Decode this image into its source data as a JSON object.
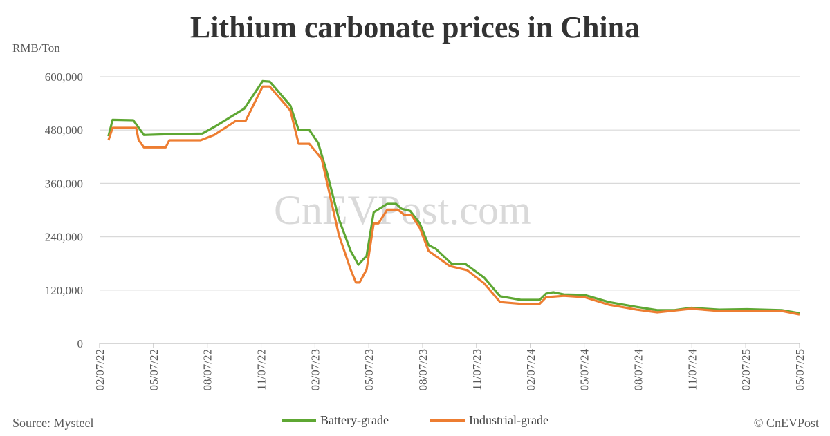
{
  "chart_data": {
    "type": "line",
    "title": "Lithium carbonate prices in China",
    "ylabel": "RMB/Ton",
    "ylim": [
      0,
      600000
    ],
    "yticks": [
      "0",
      "120,000",
      "240,000",
      "360,000",
      "480,000",
      "600,000"
    ],
    "ytick_values": [
      0,
      120000,
      240000,
      360000,
      480000,
      600000
    ],
    "xlim": [
      "2022-02-07",
      "2025-05-07"
    ],
    "xticks": [
      "02/07/22",
      "05/07/22",
      "08/07/22",
      "11/07/22",
      "02/07/23",
      "05/07/23",
      "08/07/23",
      "11/07/23",
      "02/07/24",
      "05/07/24",
      "08/07/24",
      "11/07/24",
      "02/07/25",
      "05/07/25"
    ],
    "grid": "horizontal",
    "legend": "bottom",
    "series": [
      {
        "name": "Battery-grade",
        "color": "#5ea733",
        "x": [
          "2022-02-22",
          "2022-03-01",
          "2022-04-05",
          "2022-04-23",
          "2022-06-11",
          "2022-07-31",
          "2022-08-24",
          "2022-09-25",
          "2022-10-10",
          "2022-11-10",
          "2022-11-22",
          "2022-12-07",
          "2022-12-27",
          "2023-01-10",
          "2023-01-28",
          "2023-02-12",
          "2023-02-27",
          "2023-03-19",
          "2023-04-08",
          "2023-04-21",
          "2023-05-05",
          "2023-05-17",
          "2023-06-09",
          "2023-06-24",
          "2023-07-03",
          "2023-07-18",
          "2023-08-03",
          "2023-08-18",
          "2023-08-30",
          "2023-09-26",
          "2023-10-19",
          "2023-11-20",
          "2023-12-17",
          "2024-01-21",
          "2024-02-22",
          "2024-03-04",
          "2024-03-16",
          "2024-04-03",
          "2024-05-08",
          "2024-06-18",
          "2024-08-04",
          "2024-09-08",
          "2024-10-07",
          "2024-11-05",
          "2024-12-22",
          "2025-02-07",
          "2025-04-07",
          "2025-05-07"
        ],
        "values": [
          466000,
          503000,
          502000,
          469000,
          471000,
          472000,
          490000,
          516000,
          528000,
          590000,
          589000,
          566000,
          535000,
          480000,
          480000,
          451000,
          384000,
          280000,
          208000,
          177000,
          197000,
          295000,
          314000,
          314000,
          303000,
          298000,
          270000,
          221000,
          213000,
          179000,
          179000,
          148000,
          106000,
          98000,
          98000,
          112000,
          115000,
          110000,
          109000,
          93000,
          82000,
          75000,
          75000,
          80000,
          76000,
          77000,
          75000,
          68000
        ]
      },
      {
        "name": "Industrial-grade",
        "color": "#ed7d31",
        "x": [
          "2022-02-22",
          "2022-03-01",
          "2022-04-10",
          "2022-04-14",
          "2022-04-23",
          "2022-05-30",
          "2022-06-05",
          "2022-07-28",
          "2022-08-20",
          "2022-09-25",
          "2022-10-12",
          "2022-11-10",
          "2022-11-22",
          "2022-12-27",
          "2023-01-10",
          "2023-01-28",
          "2023-02-18",
          "2023-03-19",
          "2023-04-08",
          "2023-04-17",
          "2023-04-23",
          "2023-05-05",
          "2023-05-17",
          "2023-05-25",
          "2023-06-09",
          "2023-06-27",
          "2023-07-08",
          "2023-07-20",
          "2023-08-03",
          "2023-08-18",
          "2023-09-23",
          "2023-10-22",
          "2023-11-20",
          "2023-12-17",
          "2024-01-21",
          "2024-02-22",
          "2024-03-04",
          "2024-04-03",
          "2024-05-08",
          "2024-06-18",
          "2024-08-04",
          "2024-09-08",
          "2024-11-05",
          "2024-12-22",
          "2025-04-07",
          "2025-05-07"
        ],
        "values": [
          457000,
          485000,
          485000,
          458000,
          441000,
          441000,
          457000,
          457000,
          469000,
          500000,
          500000,
          578000,
          578000,
          524000,
          449000,
          449000,
          415000,
          244000,
          166000,
          137000,
          137000,
          166000,
          270000,
          270000,
          301000,
          301000,
          289000,
          289000,
          260000,
          208000,
          174000,
          165000,
          135000,
          93000,
          89000,
          89000,
          104000,
          107000,
          104000,
          87000,
          76000,
          70000,
          78000,
          73000,
          73000,
          65000
        ]
      }
    ]
  },
  "watermark": "CnEVPost.com",
  "source": "Source: Mysteel",
  "copyright": "© CnEVPost"
}
